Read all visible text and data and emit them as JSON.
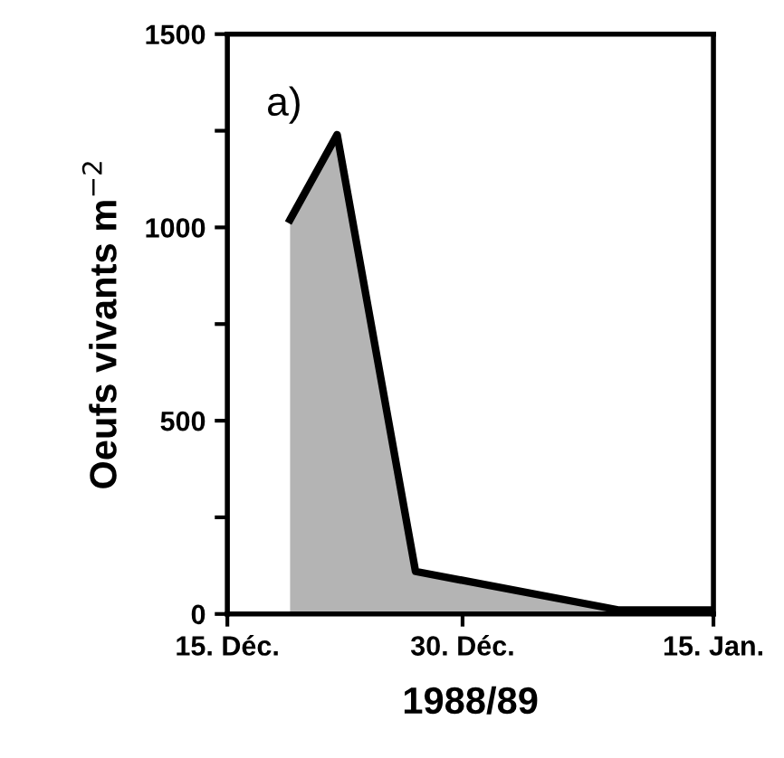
{
  "chart_data": {
    "type": "area",
    "x": [
      "1988-12-19",
      "1988-12-22",
      "1988-12-27",
      "1989-01-09",
      "1989-01-15"
    ],
    "series": [
      {
        "color": "#b4b4b4",
        "values": [
          1020,
          1240,
          110,
          10,
          10
        ]
      }
    ],
    "xlim": [
      "1988-12-15",
      "1989-01-15"
    ],
    "xticks": [
      {
        "value": "1988-12-15",
        "label": "15. Déc."
      },
      {
        "value": "1988-12-30",
        "label": "30. Déc."
      },
      {
        "value": "1989-01-15",
        "label": "15. Jan."
      }
    ],
    "ylim": [
      0,
      1500
    ],
    "yticks": [
      0,
      {
        "value": 250,
        "label": null
      },
      500,
      {
        "value": 750,
        "label": null
      },
      1000,
      {
        "value": 1250,
        "label": null
      },
      1500
    ],
    "xlabel": "1988/89",
    "ylabel": "Oeufs vivants m$^{−2}$",
    "annotations": [
      "a)"
    ],
    "grid": false,
    "legend": false
  }
}
